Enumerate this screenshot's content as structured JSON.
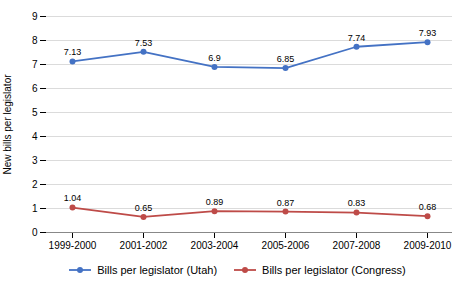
{
  "chart_data": {
    "type": "line",
    "ylabel": "New bills per legislator",
    "categories": [
      "1999-2000",
      "2001-2002",
      "2003-2004",
      "2005-2006",
      "2007-2008",
      "2009-2010"
    ],
    "series": [
      {
        "name": "Bills per legislator (Utah)",
        "color": "#4472C4",
        "marker": "circle",
        "values": [
          7.13,
          7.53,
          6.9,
          6.85,
          7.74,
          7.93
        ]
      },
      {
        "name": "Bills per legislator (Congress)",
        "color": "#BE4B48",
        "marker": "circle",
        "values": [
          1.04,
          0.65,
          0.89,
          0.87,
          0.83,
          0.68
        ]
      }
    ],
    "ylim": [
      0,
      9
    ],
    "yticks": [
      0,
      1,
      2,
      3,
      4,
      5,
      6,
      7,
      8,
      9
    ],
    "grid": true,
    "legend": "bottom",
    "data_labels": true
  }
}
